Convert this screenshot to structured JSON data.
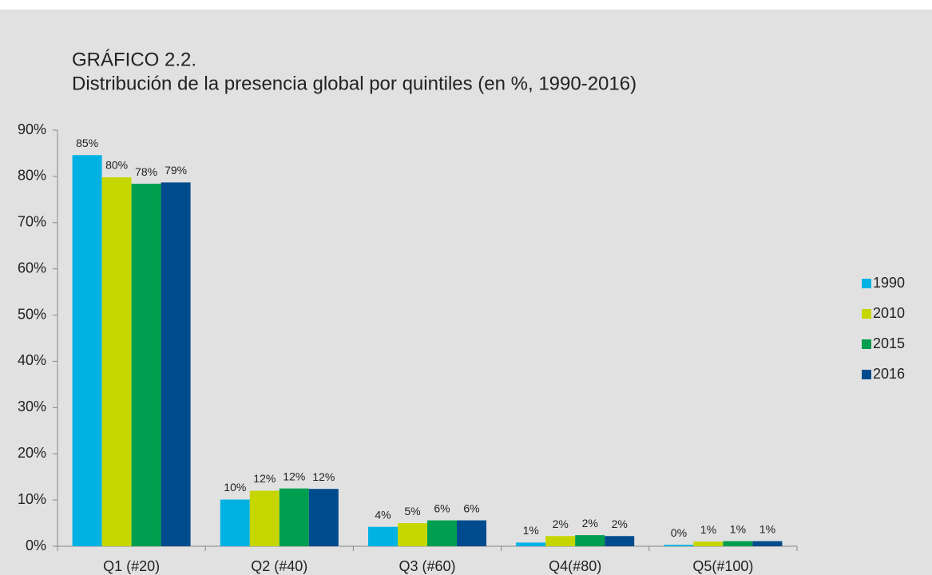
{
  "chart_data": {
    "type": "bar",
    "title": "GRÁFICO 2.2.",
    "subtitle": "Distribución de la presencia global por quintiles (en %, 1990-2016)",
    "categories": [
      "Q1 (#20)",
      "Q2 (#40)",
      "Q3 (#60)",
      "Q4(#80)",
      "Q5(#100)"
    ],
    "series": [
      {
        "name": "1990",
        "color": "#00b2e3",
        "values": [
          84.6,
          10.1,
          4.2,
          0.8,
          0.3
        ],
        "value_labels": [
          "85%",
          "10%",
          "4%",
          "1%",
          "0%"
        ]
      },
      {
        "name": "2010",
        "color": "#c5d600",
        "values": [
          79.8,
          12.0,
          5.0,
          2.2,
          1.0
        ],
        "value_labels": [
          "80%",
          "12%",
          "5%",
          "2%",
          "1%"
        ]
      },
      {
        "name": "2015",
        "color": "#009e4f",
        "values": [
          78.4,
          12.5,
          5.6,
          2.4,
          1.1
        ],
        "value_labels": [
          "78%",
          "12%",
          "6%",
          "2%",
          "1%"
        ]
      },
      {
        "name": "2016",
        "color": "#004b8d",
        "values": [
          78.7,
          12.4,
          5.6,
          2.2,
          1.1
        ],
        "value_labels": [
          "79%",
          "12%",
          "6%",
          "2%",
          "1%"
        ]
      }
    ],
    "ylim": [
      0,
      90
    ],
    "yticks": [
      {
        "value": 0,
        "label": "0%"
      },
      {
        "value": 10,
        "label": "10%"
      },
      {
        "value": 20,
        "label": "20%"
      },
      {
        "value": 30,
        "label": "30%"
      },
      {
        "value": 40,
        "label": "40%"
      },
      {
        "value": 50,
        "label": "50%"
      },
      {
        "value": 60,
        "label": "60%"
      },
      {
        "value": 70,
        "label": "70%"
      },
      {
        "value": 80,
        "label": "80%"
      },
      {
        "value": 90,
        "label": "90%"
      }
    ],
    "grid": false,
    "legend": "right"
  }
}
